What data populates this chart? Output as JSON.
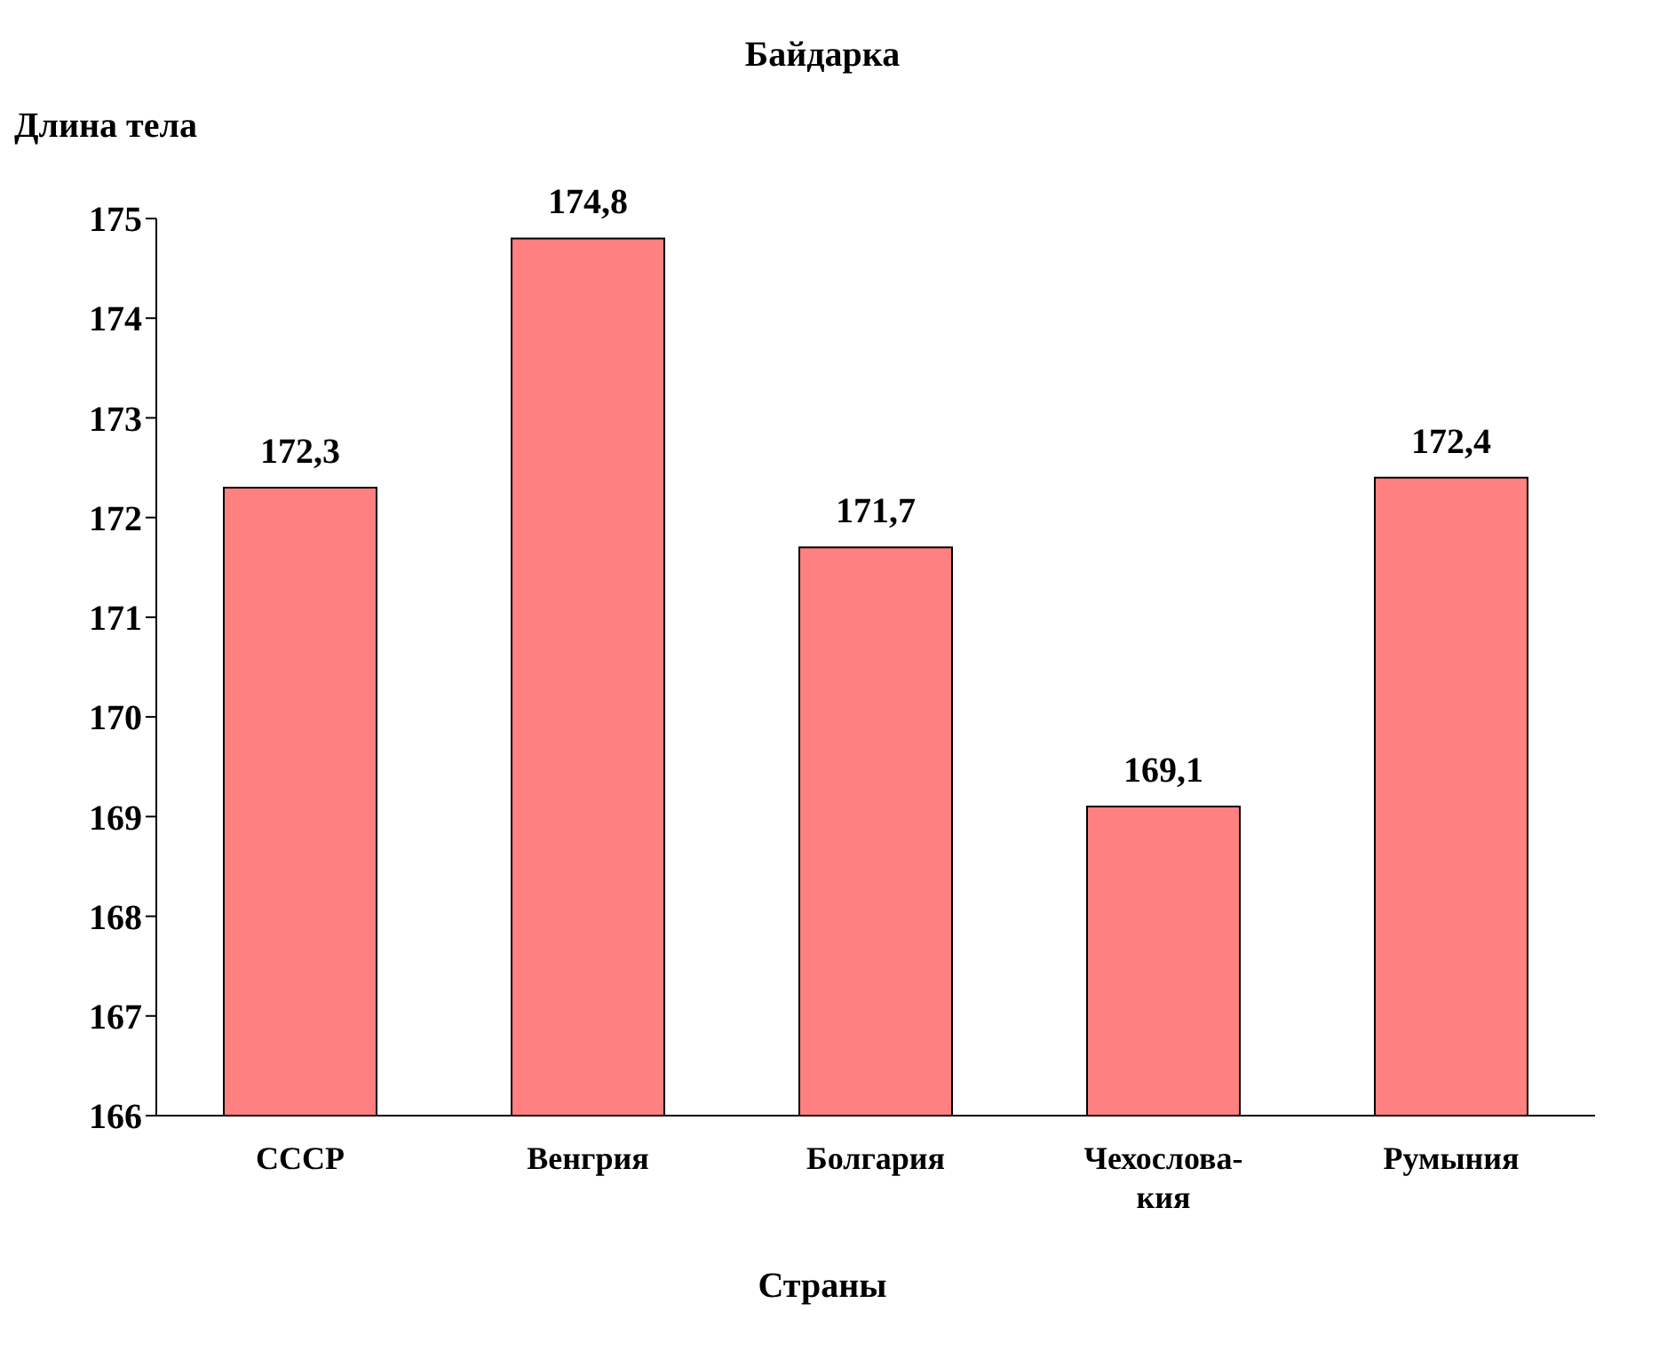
{
  "chart_data": {
    "type": "bar",
    "title": "Байдарка",
    "ylabel": "Длина тела",
    "xlabel": "Страны",
    "categories": [
      "СССР",
      "Венгрия",
      "Болгария",
      "Чехослова-\nкия",
      "Румыния"
    ],
    "values": [
      172.3,
      174.8,
      171.7,
      169.1,
      172.4
    ],
    "value_labels": [
      "172,3",
      "174,8",
      "171,7",
      "169,1",
      "172,4"
    ],
    "color": "#ff8080",
    "ylim": [
      166,
      175
    ],
    "yticks": [
      166,
      167,
      168,
      169,
      170,
      171,
      172,
      173,
      174,
      175
    ],
    "grid": false,
    "legend": false
  }
}
